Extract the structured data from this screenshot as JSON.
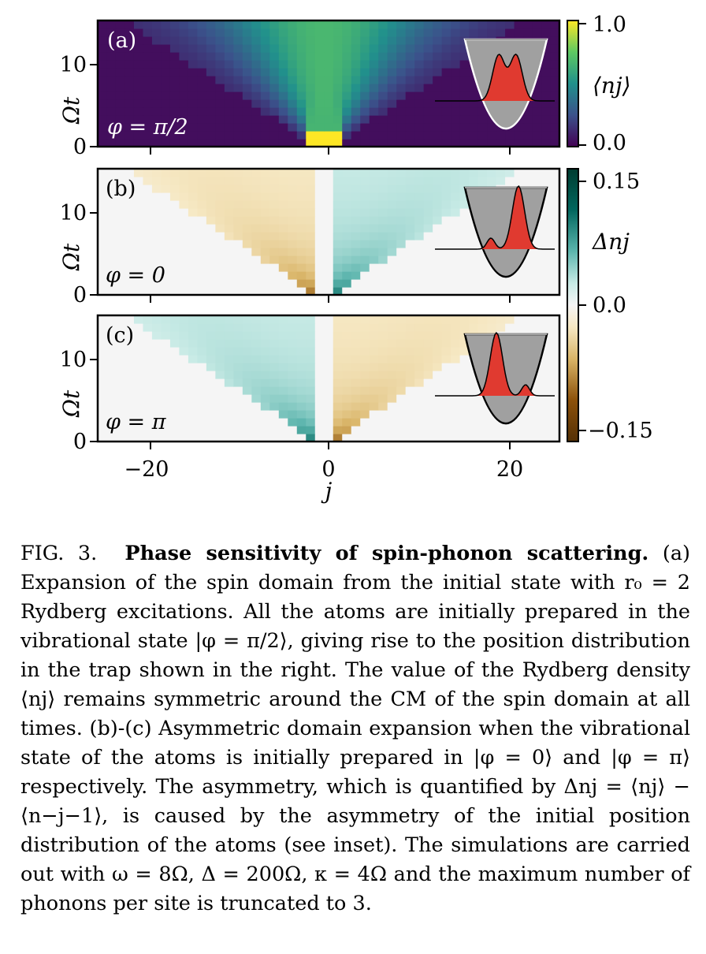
{
  "figure": {
    "panels": [
      {
        "label": "(a)",
        "phase_label": "φ = π/2",
        "colormap": "viridis",
        "quantity": "⟨nj⟩",
        "asymmetry": 0
      },
      {
        "label": "(b)",
        "phase_label": "φ = 0",
        "colormap": "BrBG",
        "quantity": "Δnj",
        "asymmetry": 1
      },
      {
        "label": "(c)",
        "phase_label": "φ = π",
        "colormap": "BrBG",
        "quantity": "Δnj",
        "asymmetry": -1
      }
    ],
    "y_axis": {
      "label": "Ωt",
      "ticks": [
        "0",
        "10"
      ]
    },
    "x_axis": {
      "label": "j",
      "ticks": [
        "−20",
        "0",
        "20"
      ]
    },
    "colorbar_top": {
      "label": "⟨nj⟩",
      "ticks": [
        "1.0",
        "0.0"
      ]
    },
    "colorbar_bottom": {
      "label": "Δnj",
      "ticks": [
        "0.15",
        "0.0",
        "−0.15"
      ]
    },
    "colors": {
      "inset_fill": "#a0a0a0",
      "inset_gauss": "#e03a30",
      "viridis_low": "#440154",
      "viridis_high": "#fde725",
      "brbg_pos": "#01665e",
      "brbg_neg": "#8c510a"
    }
  },
  "caption": {
    "label": "FIG. 3.",
    "title": "Phase sensitivity of spin-phonon scattering.",
    "body": "(a) Expansion of the spin domain from the initial state with r₀ = 2 Rydberg excitations. All the atoms are initially prepared in the vibrational state |φ = π/2⟩, giving rise to the position distribution in the trap shown in the right. The value of the Rydberg density ⟨nj⟩ remains symmetric around the CM of the spin domain at all times. (b)-(c) Asymmetric domain expansion when the vibrational state of the atoms is initially prepared in |φ = 0⟩ and |φ = π⟩ respectively. The asymmetry, which is quantified by Δnj = ⟨nj⟩ − ⟨n−j−1⟩, is caused by the asymmetry of the initial position distribution of the atoms (see inset). The simulations are carried out with ω = 8Ω, Δ = 200Ω, κ = 4Ω and the maximum number of phonons per site is truncated to 3."
  }
}
